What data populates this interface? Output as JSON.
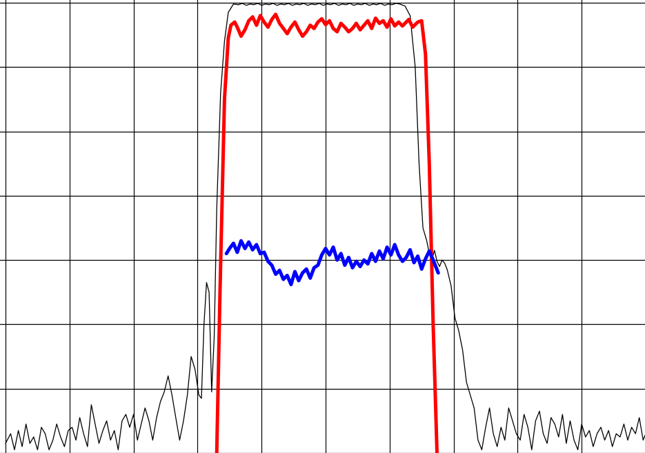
{
  "chart_data": {
    "type": "line",
    "title": "",
    "xlabel": "",
    "ylabel": "",
    "xlim": [
      0,
      10
    ],
    "ylim": [
      0,
      7
    ],
    "grid": true,
    "legend": "none",
    "series": [
      {
        "color": "#000000",
        "line": "thin",
        "points": [
          [
            0.0,
            0.15
          ],
          [
            0.08,
            0.3
          ],
          [
            0.14,
            0.05
          ],
          [
            0.2,
            0.35
          ],
          [
            0.26,
            0.1
          ],
          [
            0.32,
            0.45
          ],
          [
            0.38,
            0.15
          ],
          [
            0.44,
            0.25
          ],
          [
            0.5,
            0.05
          ],
          [
            0.56,
            0.4
          ],
          [
            0.62,
            0.3
          ],
          [
            0.68,
            0.05
          ],
          [
            0.74,
            0.2
          ],
          [
            0.8,
            0.45
          ],
          [
            0.86,
            0.25
          ],
          [
            0.92,
            0.1
          ],
          [
            0.98,
            0.35
          ],
          [
            1.04,
            0.4
          ],
          [
            1.1,
            0.2
          ],
          [
            1.16,
            0.55
          ],
          [
            1.22,
            0.3
          ],
          [
            1.28,
            0.1
          ],
          [
            1.34,
            0.75
          ],
          [
            1.4,
            0.45
          ],
          [
            1.46,
            0.15
          ],
          [
            1.52,
            0.35
          ],
          [
            1.58,
            0.5
          ],
          [
            1.64,
            0.2
          ],
          [
            1.7,
            0.35
          ],
          [
            1.76,
            0.05
          ],
          [
            1.82,
            0.5
          ],
          [
            1.88,
            0.6
          ],
          [
            1.94,
            0.4
          ],
          [
            2.0,
            0.6
          ],
          [
            2.06,
            0.2
          ],
          [
            2.12,
            0.45
          ],
          [
            2.18,
            0.7
          ],
          [
            2.24,
            0.5
          ],
          [
            2.3,
            0.2
          ],
          [
            2.36,
            0.55
          ],
          [
            2.42,
            0.8
          ],
          [
            2.48,
            0.95
          ],
          [
            2.54,
            1.2
          ],
          [
            2.6,
            0.9
          ],
          [
            2.66,
            0.55
          ],
          [
            2.72,
            0.2
          ],
          [
            2.78,
            0.5
          ],
          [
            2.84,
            0.9
          ],
          [
            2.9,
            1.5
          ],
          [
            2.96,
            1.3
          ],
          [
            3.02,
            0.9
          ],
          [
            3.06,
            0.85
          ],
          [
            3.1,
            2.0
          ],
          [
            3.14,
            2.65
          ],
          [
            3.18,
            2.5
          ],
          [
            3.22,
            0.95
          ],
          [
            3.26,
            1.8
          ],
          [
            3.3,
            3.8
          ],
          [
            3.36,
            5.6
          ],
          [
            3.42,
            6.4
          ],
          [
            3.48,
            6.85
          ],
          [
            3.56,
            6.98
          ],
          [
            3.64,
            6.97
          ],
          [
            3.7,
            6.99
          ],
          [
            3.76,
            6.96
          ],
          [
            3.82,
            6.98
          ],
          [
            3.88,
            6.97
          ],
          [
            3.94,
            6.99
          ],
          [
            4.0,
            6.96
          ],
          [
            4.06,
            6.98
          ],
          [
            4.12,
            6.97
          ],
          [
            4.18,
            6.99
          ],
          [
            4.24,
            6.96
          ],
          [
            4.3,
            6.98
          ],
          [
            4.36,
            6.97
          ],
          [
            4.42,
            6.99
          ],
          [
            4.48,
            6.96
          ],
          [
            4.54,
            6.98
          ],
          [
            4.6,
            6.97
          ],
          [
            4.66,
            6.99
          ],
          [
            4.72,
            6.96
          ],
          [
            4.78,
            6.98
          ],
          [
            4.84,
            6.97
          ],
          [
            4.9,
            6.99
          ],
          [
            4.96,
            6.96
          ],
          [
            5.02,
            6.98
          ],
          [
            5.08,
            6.97
          ],
          [
            5.14,
            6.99
          ],
          [
            5.2,
            6.96
          ],
          [
            5.26,
            6.98
          ],
          [
            5.32,
            6.97
          ],
          [
            5.38,
            6.99
          ],
          [
            5.44,
            6.96
          ],
          [
            5.5,
            6.98
          ],
          [
            5.56,
            6.97
          ],
          [
            5.62,
            6.99
          ],
          [
            5.68,
            6.96
          ],
          [
            5.74,
            6.98
          ],
          [
            5.8,
            6.97
          ],
          [
            5.86,
            6.99
          ],
          [
            5.92,
            6.96
          ],
          [
            5.98,
            6.98
          ],
          [
            6.04,
            6.97
          ],
          [
            6.1,
            6.99
          ],
          [
            6.16,
            6.98
          ],
          [
            6.24,
            6.95
          ],
          [
            6.32,
            6.8
          ],
          [
            6.4,
            6.0
          ],
          [
            6.46,
            4.5
          ],
          [
            6.52,
            3.5
          ],
          [
            6.58,
            3.3
          ],
          [
            6.62,
            3.1
          ],
          [
            6.66,
            3.0
          ],
          [
            6.7,
            3.15
          ],
          [
            6.74,
            2.98
          ],
          [
            6.78,
            2.9
          ],
          [
            6.82,
            3.0
          ],
          [
            6.86,
            2.95
          ],
          [
            6.9,
            2.85
          ],
          [
            6.96,
            2.6
          ],
          [
            7.02,
            2.1
          ],
          [
            7.08,
            1.9
          ],
          [
            7.14,
            1.6
          ],
          [
            7.2,
            1.1
          ],
          [
            7.26,
            0.9
          ],
          [
            7.32,
            0.7
          ],
          [
            7.38,
            0.2
          ],
          [
            7.44,
            0.05
          ],
          [
            7.5,
            0.4
          ],
          [
            7.56,
            0.7
          ],
          [
            7.62,
            0.3
          ],
          [
            7.68,
            0.1
          ],
          [
            7.74,
            0.4
          ],
          [
            7.8,
            0.2
          ],
          [
            7.86,
            0.7
          ],
          [
            7.92,
            0.5
          ],
          [
            7.98,
            0.3
          ],
          [
            8.04,
            0.2
          ],
          [
            8.1,
            0.6
          ],
          [
            8.16,
            0.4
          ],
          [
            8.22,
            0.05
          ],
          [
            8.28,
            0.5
          ],
          [
            8.34,
            0.65
          ],
          [
            8.4,
            0.3
          ],
          [
            8.46,
            0.15
          ],
          [
            8.52,
            0.55
          ],
          [
            8.58,
            0.45
          ],
          [
            8.64,
            0.25
          ],
          [
            8.7,
            0.6
          ],
          [
            8.76,
            0.15
          ],
          [
            8.82,
            0.5
          ],
          [
            8.88,
            0.2
          ],
          [
            8.94,
            0.05
          ],
          [
            9.0,
            0.45
          ],
          [
            9.06,
            0.25
          ],
          [
            9.12,
            0.35
          ],
          [
            9.18,
            0.1
          ],
          [
            9.24,
            0.3
          ],
          [
            9.3,
            0.4
          ],
          [
            9.36,
            0.2
          ],
          [
            9.42,
            0.35
          ],
          [
            9.48,
            0.1
          ],
          [
            9.54,
            0.3
          ],
          [
            9.6,
            0.25
          ],
          [
            9.66,
            0.45
          ],
          [
            9.72,
            0.2
          ],
          [
            9.78,
            0.4
          ],
          [
            9.84,
            0.3
          ],
          [
            9.9,
            0.55
          ],
          [
            9.96,
            0.2
          ],
          [
            10.0,
            0.3
          ]
        ]
      },
      {
        "color": "#ff0000",
        "line": "thick",
        "points": [
          [
            3.3,
            0.0
          ],
          [
            3.35,
            2.5
          ],
          [
            3.42,
            5.5
          ],
          [
            3.48,
            6.45
          ],
          [
            3.52,
            6.65
          ],
          [
            3.58,
            6.7
          ],
          [
            3.62,
            6.62
          ],
          [
            3.68,
            6.48
          ],
          [
            3.74,
            6.58
          ],
          [
            3.8,
            6.72
          ],
          [
            3.86,
            6.78
          ],
          [
            3.92,
            6.65
          ],
          [
            3.98,
            6.8
          ],
          [
            4.04,
            6.7
          ],
          [
            4.1,
            6.62
          ],
          [
            4.16,
            6.74
          ],
          [
            4.22,
            6.82
          ],
          [
            4.28,
            6.68
          ],
          [
            4.34,
            6.6
          ],
          [
            4.4,
            6.52
          ],
          [
            4.46,
            6.62
          ],
          [
            4.52,
            6.7
          ],
          [
            4.58,
            6.58
          ],
          [
            4.64,
            6.48
          ],
          [
            4.7,
            6.55
          ],
          [
            4.76,
            6.65
          ],
          [
            4.82,
            6.6
          ],
          [
            4.88,
            6.7
          ],
          [
            4.94,
            6.75
          ],
          [
            5.0,
            6.66
          ],
          [
            5.06,
            6.72
          ],
          [
            5.12,
            6.6
          ],
          [
            5.18,
            6.55
          ],
          [
            5.24,
            6.68
          ],
          [
            5.3,
            6.62
          ],
          [
            5.36,
            6.55
          ],
          [
            5.42,
            6.6
          ],
          [
            5.48,
            6.68
          ],
          [
            5.54,
            6.58
          ],
          [
            5.6,
            6.65
          ],
          [
            5.66,
            6.72
          ],
          [
            5.72,
            6.6
          ],
          [
            5.78,
            6.76
          ],
          [
            5.84,
            6.68
          ],
          [
            5.9,
            6.72
          ],
          [
            5.96,
            6.62
          ],
          [
            6.02,
            6.75
          ],
          [
            6.08,
            6.64
          ],
          [
            6.14,
            6.7
          ],
          [
            6.2,
            6.64
          ],
          [
            6.26,
            6.7
          ],
          [
            6.3,
            6.74
          ],
          [
            6.36,
            6.62
          ],
          [
            6.44,
            6.7
          ],
          [
            6.5,
            6.72
          ],
          [
            6.56,
            6.2
          ],
          [
            6.62,
            4.5
          ],
          [
            6.68,
            2.0
          ],
          [
            6.74,
            0.0
          ]
        ]
      },
      {
        "color": "#0000ff",
        "line": "thick",
        "points": [
          [
            3.45,
            3.1
          ],
          [
            3.5,
            3.18
          ],
          [
            3.56,
            3.26
          ],
          [
            3.62,
            3.12
          ],
          [
            3.68,
            3.3
          ],
          [
            3.74,
            3.18
          ],
          [
            3.8,
            3.28
          ],
          [
            3.86,
            3.16
          ],
          [
            3.92,
            3.24
          ],
          [
            3.98,
            3.1
          ],
          [
            4.04,
            3.12
          ],
          [
            4.1,
            2.98
          ],
          [
            4.16,
            2.92
          ],
          [
            4.22,
            2.78
          ],
          [
            4.28,
            2.84
          ],
          [
            4.34,
            2.7
          ],
          [
            4.4,
            2.76
          ],
          [
            4.46,
            2.62
          ],
          [
            4.52,
            2.82
          ],
          [
            4.58,
            2.68
          ],
          [
            4.64,
            2.8
          ],
          [
            4.7,
            2.86
          ],
          [
            4.76,
            2.72
          ],
          [
            4.82,
            2.88
          ],
          [
            4.88,
            2.92
          ],
          [
            4.94,
            3.08
          ],
          [
            5.0,
            3.18
          ],
          [
            5.06,
            3.08
          ],
          [
            5.12,
            3.2
          ],
          [
            5.18,
            3.0
          ],
          [
            5.24,
            3.1
          ],
          [
            5.3,
            2.92
          ],
          [
            5.36,
            3.04
          ],
          [
            5.42,
            2.88
          ],
          [
            5.48,
            2.98
          ],
          [
            5.54,
            2.9
          ],
          [
            5.6,
            3.0
          ],
          [
            5.66,
            2.94
          ],
          [
            5.72,
            3.1
          ],
          [
            5.78,
            2.98
          ],
          [
            5.84,
            3.14
          ],
          [
            5.9,
            3.02
          ],
          [
            5.96,
            3.2
          ],
          [
            6.02,
            3.08
          ],
          [
            6.08,
            3.24
          ],
          [
            6.14,
            3.08
          ],
          [
            6.2,
            2.98
          ],
          [
            6.26,
            3.04
          ],
          [
            6.32,
            3.16
          ],
          [
            6.38,
            2.96
          ],
          [
            6.44,
            3.06
          ],
          [
            6.5,
            2.86
          ],
          [
            6.56,
            3.02
          ],
          [
            6.62,
            3.14
          ],
          [
            6.68,
            3.0
          ],
          [
            6.76,
            2.8
          ]
        ]
      }
    ]
  }
}
